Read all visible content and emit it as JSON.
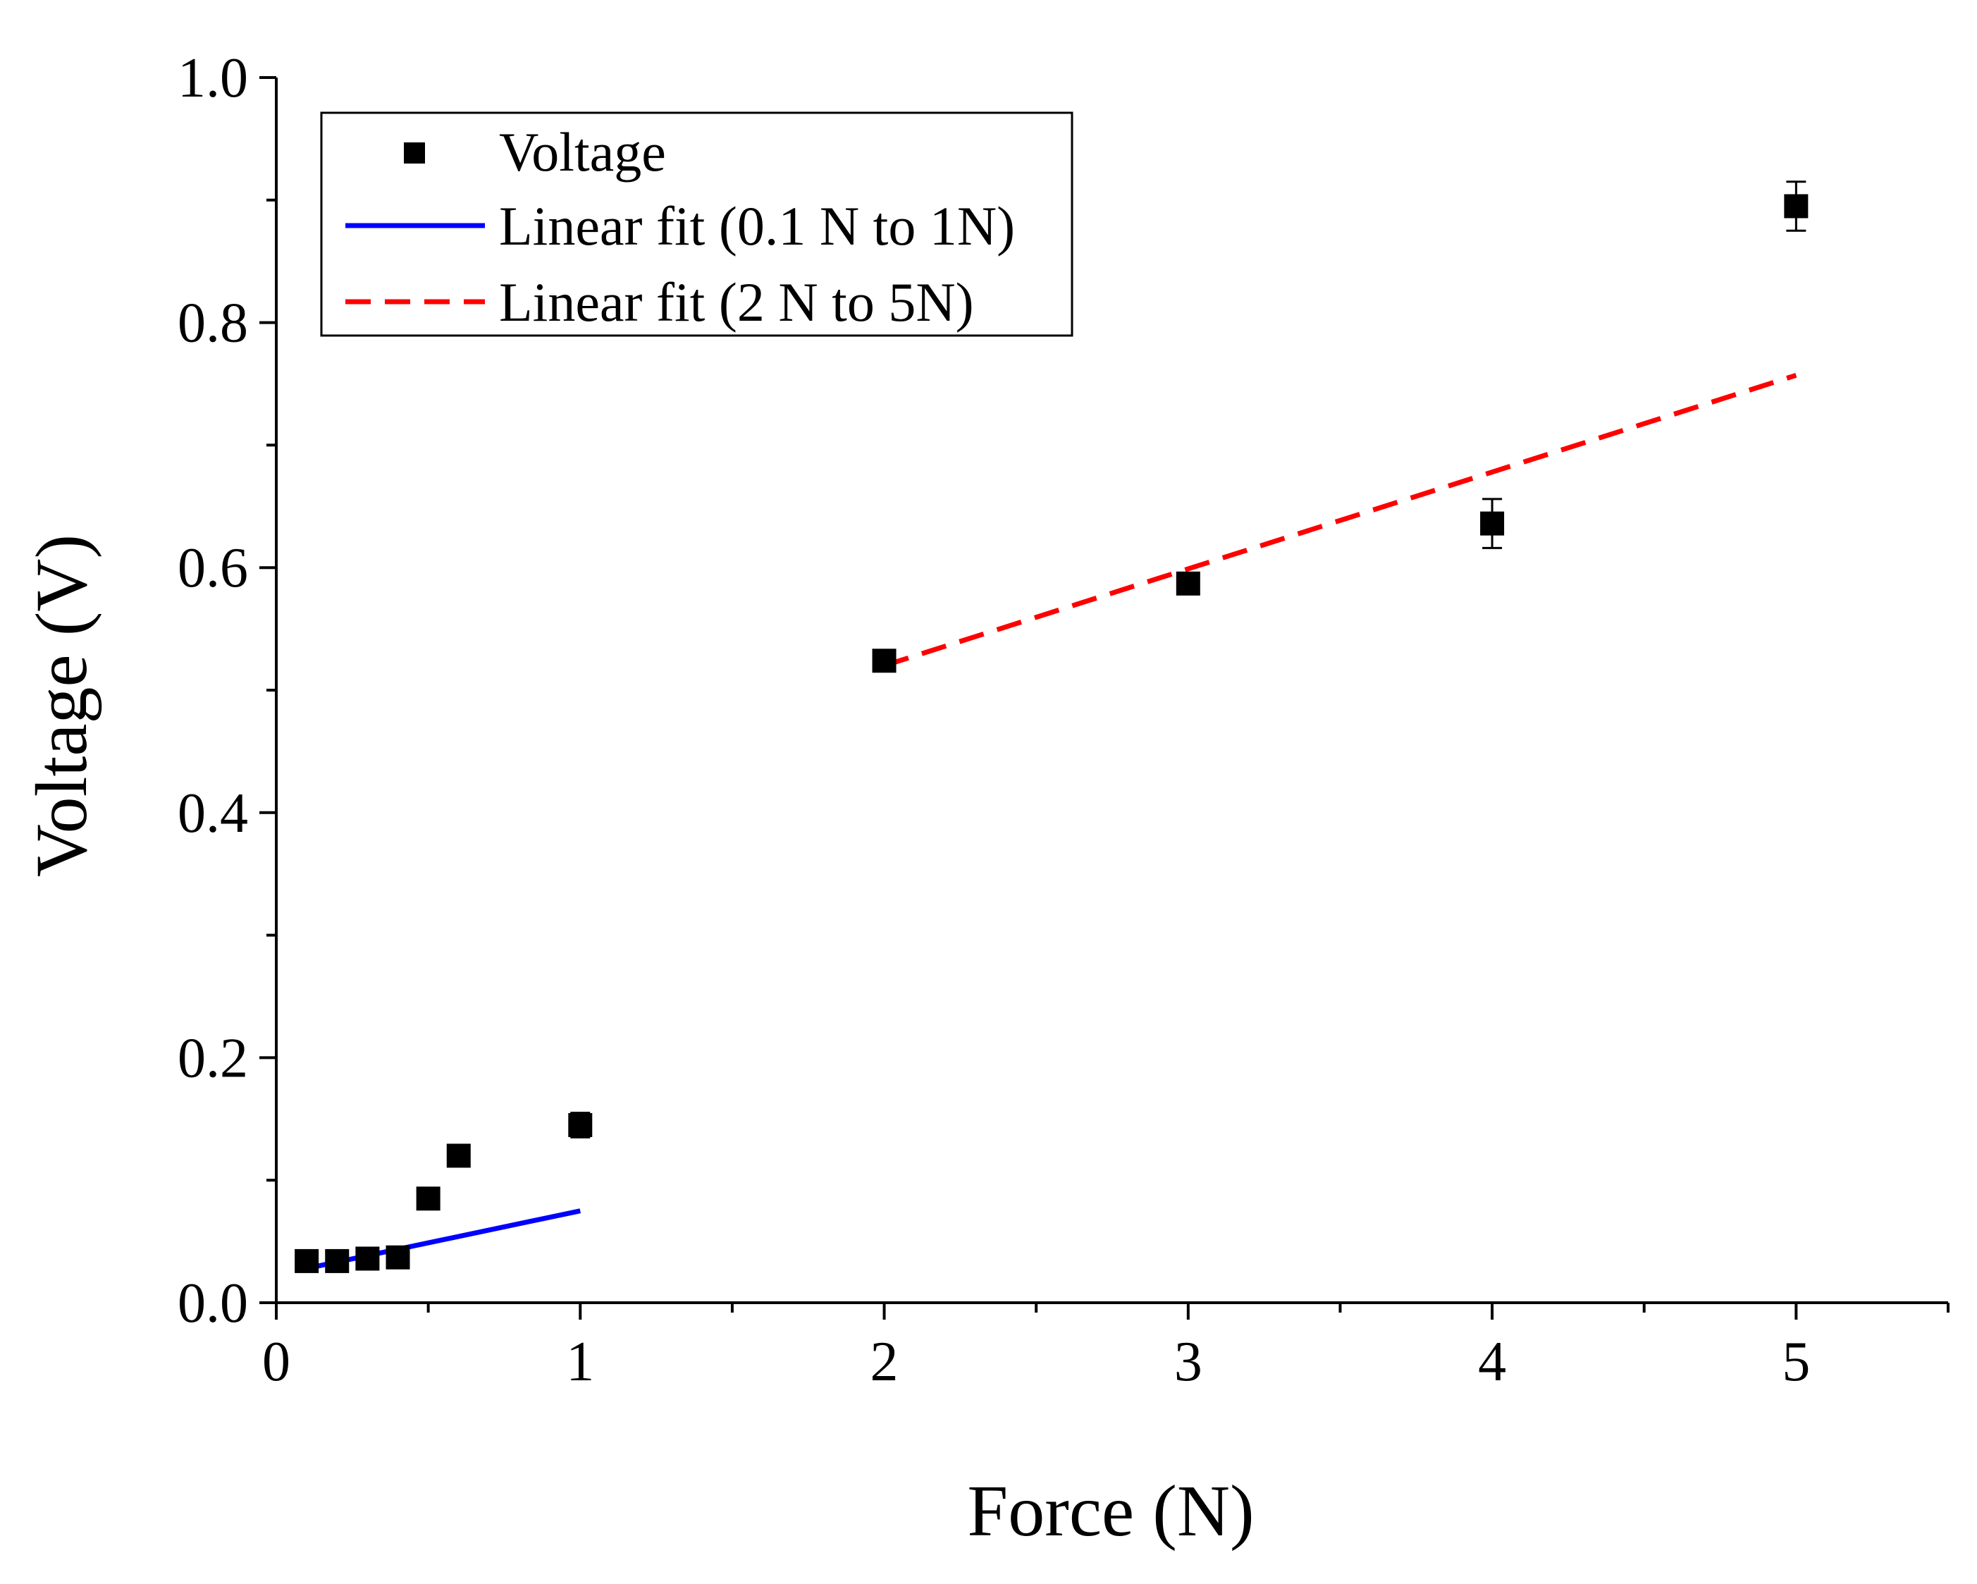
{
  "chart_data": {
    "type": "scatter",
    "title": "",
    "xlabel": "Force (N)",
    "ylabel": "Voltage (V)",
    "xlim": [
      0,
      5.5
    ],
    "ylim": [
      0,
      1.0
    ],
    "x_ticks": [
      0,
      1,
      2,
      3,
      4,
      5
    ],
    "x_tick_labels": [
      "0",
      "1",
      "2",
      "3",
      "4",
      "5"
    ],
    "x_minor_ticks": [
      0.5,
      1.5,
      2.5,
      3.5,
      4.5,
      5.5
    ],
    "y_ticks": [
      0.0,
      0.2,
      0.4,
      0.6,
      0.8,
      1.0
    ],
    "y_tick_labels": [
      "0.0",
      "0.2",
      "0.4",
      "0.6",
      "0.8",
      "1.0"
    ],
    "y_minor_ticks": [
      0.1,
      0.3,
      0.5,
      0.7,
      0.9
    ],
    "grid": false,
    "legend_position": "top-left",
    "series": [
      {
        "name": "Voltage",
        "kind": "scatter",
        "marker": "square",
        "color": "#000000",
        "x": [
          0.1,
          0.2,
          0.3,
          0.4,
          0.5,
          0.6,
          1.0,
          2.0,
          3.0,
          4.0,
          5.0
        ],
        "y": [
          0.034,
          0.034,
          0.036,
          0.037,
          0.085,
          0.12,
          0.145,
          0.524,
          0.587,
          0.636,
          0.895
        ],
        "error": [
          0.003,
          0.003,
          0.003,
          0.003,
          0.003,
          0.004,
          0.01,
          0.005,
          0.008,
          0.02,
          0.02
        ]
      },
      {
        "name": "Linear fit (0.1 N to 1N)",
        "kind": "line",
        "style": "solid",
        "color": "#0000ff",
        "x": [
          0.1,
          1.0
        ],
        "y": [
          0.028,
          0.075
        ]
      },
      {
        "name": "Linear fit (2 N to 5N)",
        "kind": "line",
        "style": "dashed",
        "color": "#ff0000",
        "x": [
          2.0,
          5.0
        ],
        "y": [
          0.52,
          0.757
        ]
      }
    ]
  }
}
